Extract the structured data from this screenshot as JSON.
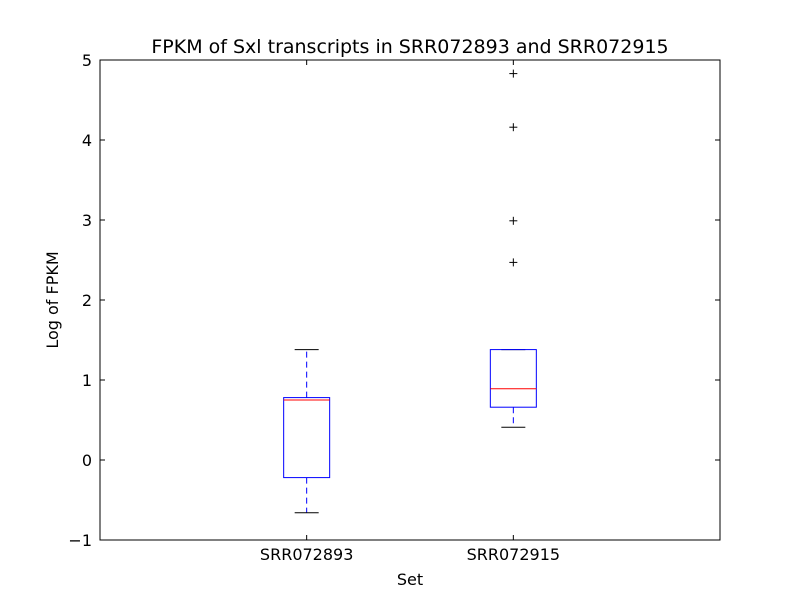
{
  "chart_data": {
    "type": "boxplot",
    "title": "FPKM of Sxl transcripts in SRR072893 and SRR072915",
    "xlabel": "Set",
    "ylabel": "Log of FPKM",
    "ylim": [
      -1,
      5
    ],
    "yticks": [
      -1,
      0,
      1,
      2,
      3,
      4,
      5
    ],
    "ytick_labels": [
      "−1",
      "0",
      "1",
      "2",
      "3",
      "4",
      "5"
    ],
    "grid": false,
    "colors": {
      "box": "#0000ff",
      "whisker": "#0000ff",
      "median": "#ff0000",
      "cap": "#000000",
      "flier": "#000000"
    },
    "categories": [
      "SRR072893",
      "SRR072915"
    ],
    "boxes": [
      {
        "category": "SRR072893",
        "whislo": -0.66,
        "q1": -0.22,
        "median": 0.75,
        "q3": 0.78,
        "whishi": 1.38,
        "fliers": []
      },
      {
        "category": "SRR072915",
        "whislo": 0.41,
        "q1": 0.66,
        "median": 0.89,
        "q3": 1.38,
        "whishi": 1.38,
        "fliers": [
          2.47,
          2.99,
          4.16,
          4.83
        ]
      }
    ]
  }
}
